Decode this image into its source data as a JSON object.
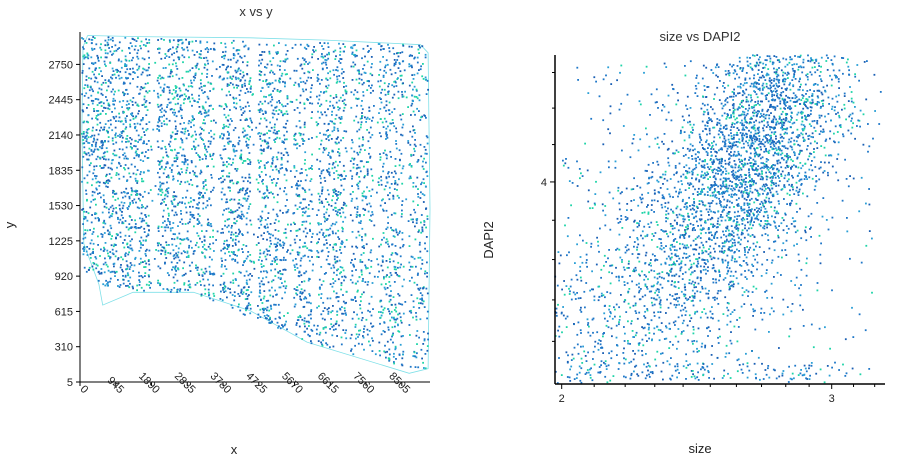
{
  "chart_data": [
    {
      "type": "scatter",
      "title": "x vs y",
      "xlabel": "x",
      "ylabel": "y",
      "xlim": [
        0,
        9250
      ],
      "ylim": [
        5,
        3030
      ],
      "xticks": [
        "0",
        "945",
        "1890",
        "2835",
        "3780",
        "4725",
        "5670",
        "6615",
        "7560",
        "8505"
      ],
      "xtick_values": [
        0,
        945,
        1890,
        2835,
        3780,
        4725,
        5670,
        6615,
        7560,
        8505
      ],
      "yticks": [
        "5",
        "310",
        "615",
        "920",
        "1225",
        "1530",
        "1835",
        "2140",
        "2445",
        "2750"
      ],
      "ytick_values": [
        5,
        310,
        615,
        920,
        1225,
        1530,
        1835,
        2140,
        2445,
        2750
      ],
      "grid": false,
      "point_colors": [
        "#1f77c8",
        "#2a9fd6",
        "#1fd4a8",
        "#1a5fb4"
      ],
      "outline_color": "#7fe0e8"
    },
    {
      "type": "scatter",
      "title": "size vs DAPI2",
      "xlabel": "size",
      "ylabel": "DAPI2",
      "xscale": "log",
      "yscale": "log",
      "xlim": [
        1.98,
        3.25
      ],
      "ylim": [
        3.5,
        4.35
      ],
      "xticks": [
        "2",
        "3"
      ],
      "xtick_values": [
        2,
        3
      ],
      "yticks": [
        "4"
      ],
      "ytick_values": [
        4
      ],
      "grid": false,
      "point_colors": [
        "#1f77c8",
        "#2a9fd6",
        "#1fd4a8",
        "#1a5fb4"
      ]
    }
  ]
}
